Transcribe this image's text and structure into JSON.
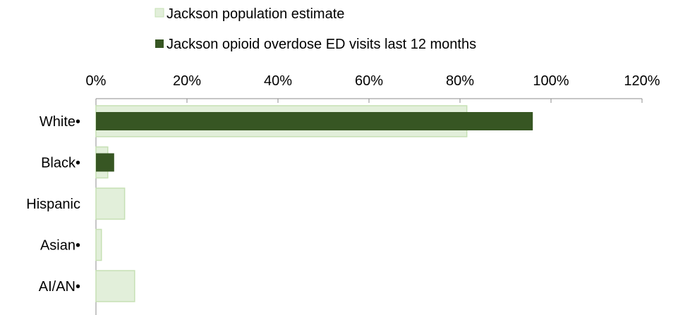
{
  "chart_data": {
    "type": "bar",
    "orientation": "horizontal",
    "title": "",
    "xlabel": "",
    "ylabel": "",
    "xlim": [
      0,
      120
    ],
    "ticks": [
      "0%",
      "20%",
      "40%",
      "60%",
      "80%",
      "100%",
      "120%"
    ],
    "tick_values": [
      0,
      20,
      40,
      60,
      80,
      100,
      120
    ],
    "categories": [
      "White•",
      "Black•",
      "Hispanic",
      "Asian•",
      "AI/AN•"
    ],
    "legend_position": "top",
    "grid": false,
    "series": [
      {
        "name": "Jackson population estimate",
        "color": "#e2efda",
        "border": "#c6e0b4",
        "values": [
          81.5,
          2.6,
          6.3,
          1.2,
          8.5
        ]
      },
      {
        "name": "Jackson opioid overdose ED visits last 12 months",
        "color": "#375623",
        "values": [
          96.0,
          4.0,
          0,
          0,
          0
        ]
      }
    ]
  }
}
